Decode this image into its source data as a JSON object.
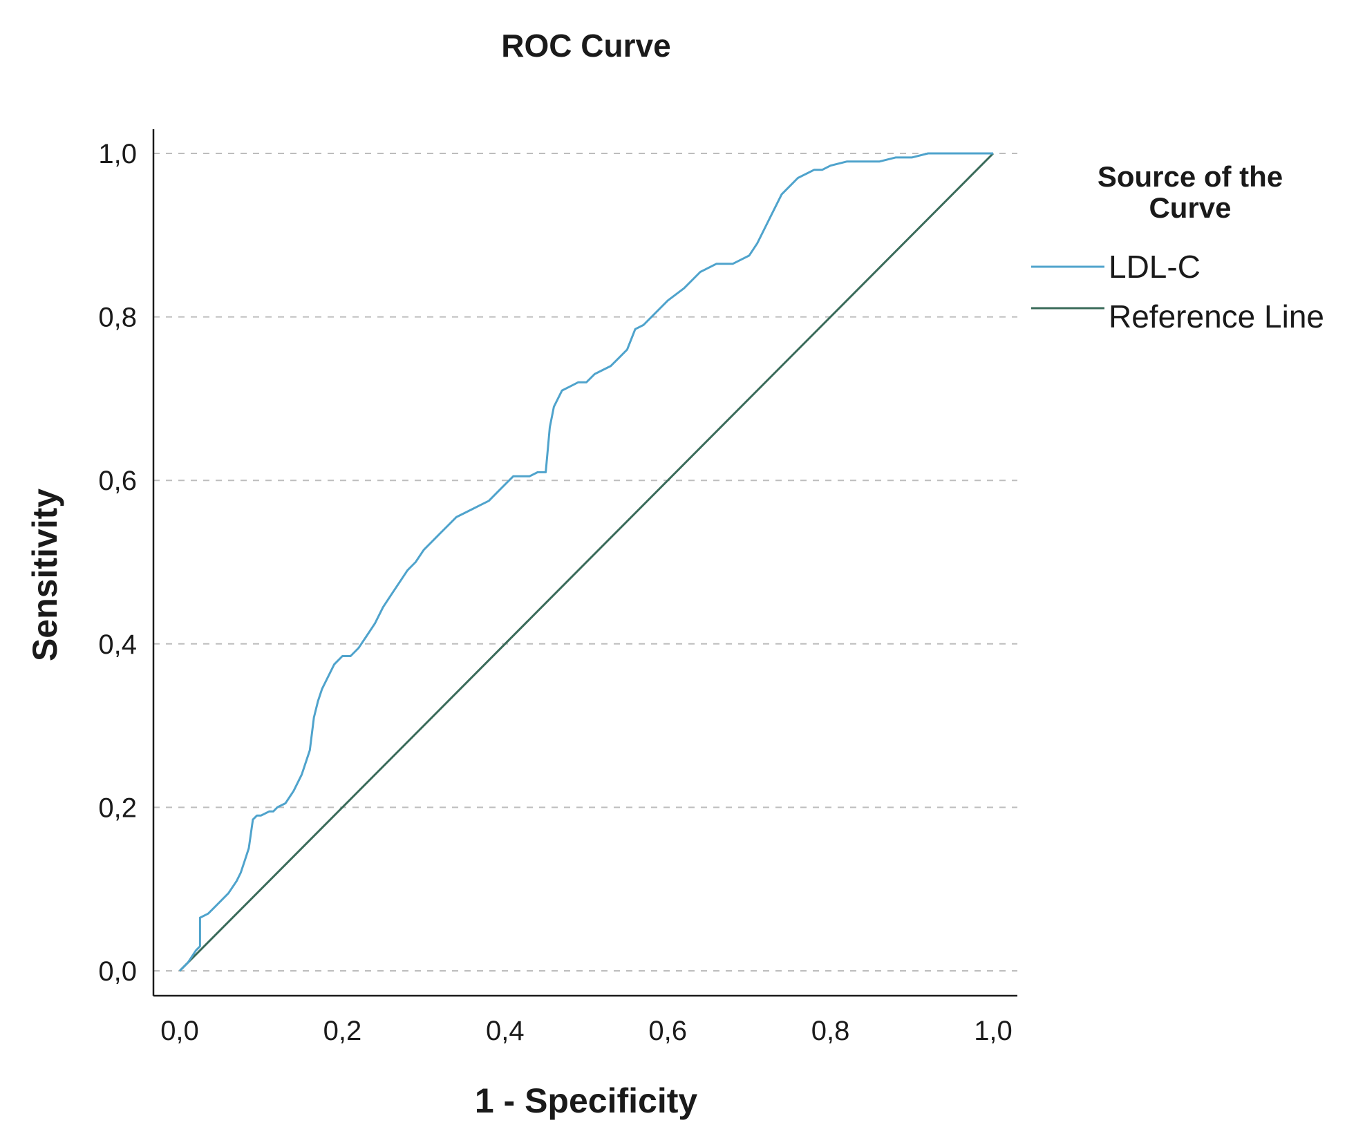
{
  "chart_data": {
    "type": "line",
    "title": "ROC Curve",
    "xlabel": "1 - Specificity",
    "ylabel": "Sensitivity",
    "xlim": [
      0,
      1
    ],
    "ylim": [
      0,
      1
    ],
    "x_ticks": [
      "0,0",
      "0,2",
      "0,4",
      "0,6",
      "0,8",
      "1,0"
    ],
    "y_ticks": [
      "0,0",
      "0,2",
      "0,4",
      "0,6",
      "0,8",
      "1,0"
    ],
    "grid": "horizontal dashed",
    "legend": {
      "title_line1": "Source of the",
      "title_line2": "Curve",
      "placement": "right"
    },
    "series": [
      {
        "name": "LDL-C",
        "color": "#4fa3cc",
        "x": [
          0.0,
          0.01,
          0.02,
          0.025,
          0.025,
          0.035,
          0.04,
          0.05,
          0.06,
          0.07,
          0.075,
          0.08,
          0.085,
          0.09,
          0.095,
          0.1,
          0.11,
          0.115,
          0.12,
          0.13,
          0.14,
          0.15,
          0.16,
          0.165,
          0.17,
          0.175,
          0.18,
          0.19,
          0.2,
          0.21,
          0.22,
          0.23,
          0.24,
          0.25,
          0.26,
          0.27,
          0.28,
          0.29,
          0.3,
          0.31,
          0.32,
          0.33,
          0.34,
          0.35,
          0.36,
          0.37,
          0.38,
          0.39,
          0.4,
          0.41,
          0.42,
          0.43,
          0.44,
          0.45,
          0.455,
          0.46,
          0.47,
          0.48,
          0.49,
          0.5,
          0.51,
          0.52,
          0.53,
          0.54,
          0.55,
          0.56,
          0.57,
          0.58,
          0.59,
          0.6,
          0.62,
          0.64,
          0.66,
          0.68,
          0.69,
          0.7,
          0.71,
          0.72,
          0.73,
          0.74,
          0.75,
          0.76,
          0.77,
          0.78,
          0.79,
          0.8,
          0.82,
          0.84,
          0.86,
          0.88,
          0.9,
          0.92,
          0.94,
          0.96,
          0.98,
          1.0
        ],
        "y": [
          0.0,
          0.01,
          0.025,
          0.03,
          0.065,
          0.07,
          0.075,
          0.085,
          0.095,
          0.11,
          0.12,
          0.135,
          0.15,
          0.185,
          0.19,
          0.19,
          0.195,
          0.195,
          0.2,
          0.205,
          0.22,
          0.24,
          0.27,
          0.31,
          0.33,
          0.345,
          0.355,
          0.375,
          0.385,
          0.385,
          0.395,
          0.41,
          0.425,
          0.445,
          0.46,
          0.475,
          0.49,
          0.5,
          0.515,
          0.525,
          0.535,
          0.545,
          0.555,
          0.56,
          0.565,
          0.57,
          0.575,
          0.585,
          0.595,
          0.605,
          0.605,
          0.605,
          0.61,
          0.61,
          0.665,
          0.69,
          0.71,
          0.715,
          0.72,
          0.72,
          0.73,
          0.735,
          0.74,
          0.75,
          0.76,
          0.785,
          0.79,
          0.8,
          0.81,
          0.82,
          0.835,
          0.855,
          0.865,
          0.865,
          0.87,
          0.875,
          0.89,
          0.91,
          0.93,
          0.95,
          0.96,
          0.97,
          0.975,
          0.98,
          0.98,
          0.985,
          0.99,
          0.99,
          0.99,
          0.995,
          0.995,
          1.0,
          1.0,
          1.0,
          1.0,
          1.0
        ]
      },
      {
        "name": "Reference Line",
        "color": "#3a6b5a",
        "x": [
          0,
          1
        ],
        "y": [
          0,
          1
        ]
      }
    ]
  }
}
